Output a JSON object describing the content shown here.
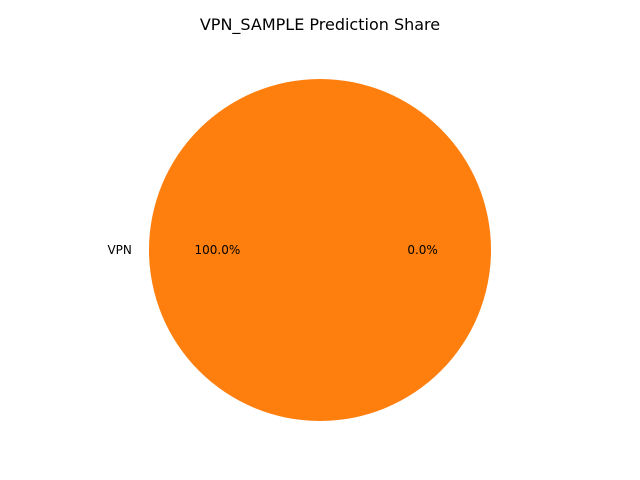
{
  "chart_data": {
    "type": "pie",
    "title": "VPN_SAMPLE Prediction Share",
    "slices": [
      {
        "label": "",
        "value": 0.0,
        "pct_label": "0.0%",
        "color": "#1f77b4"
      },
      {
        "label": "VPN",
        "value": 100.0,
        "pct_label": "100.0%",
        "color": "#ff7f0e"
      }
    ]
  }
}
